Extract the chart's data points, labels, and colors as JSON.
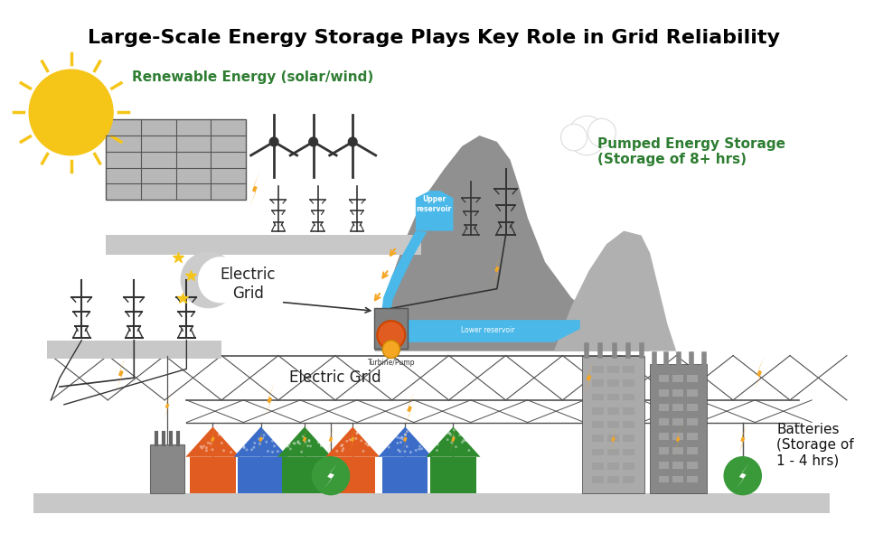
{
  "title": "Large-Scale Energy Storage Plays Key Role in Grid Reliability",
  "title_fontsize": 16,
  "title_color": "#000000",
  "title_fontweight": "bold",
  "bg_color": "#ffffff",
  "renewable_label": "Renewable Energy (solar/wind)",
  "renewable_label_color": "#2e7d32",
  "electric_grid_label1": "Electric\nGrid",
  "electric_grid_label2": "Electric Grid",
  "pumped_storage_label": "Pumped Energy Storage\n(Storage of 8+ hrs)",
  "pumped_storage_color": "#2e7d32",
  "batteries_label": "Batteries\n(Storage of\n1 - 4 hrs)",
  "batteries_color": "#111111",
  "sun_color": "#f5c518",
  "platform_color": "#c8c8c8",
  "water_color": "#4ab8e8",
  "mountain_color": "#909090",
  "mountain2_color": "#b0b0b0",
  "grid_line_color": "#505050",
  "lightning_color": "#f5a623",
  "house_colors": [
    "#e05c20",
    "#3a6cc8",
    "#2e8b2e",
    "#e05c20",
    "#3a6cc8",
    "#2e8b2e"
  ],
  "building_color": "#606060",
  "battery_color": "#3a9a3a",
  "moon_color": "#cccccc",
  "star_color": "#f5c518",
  "upper_reservoir_label": "Upper\nreservoir",
  "lower_reservoir_label": "Lower reservoir",
  "turbine_label": "Turbine/Pump"
}
